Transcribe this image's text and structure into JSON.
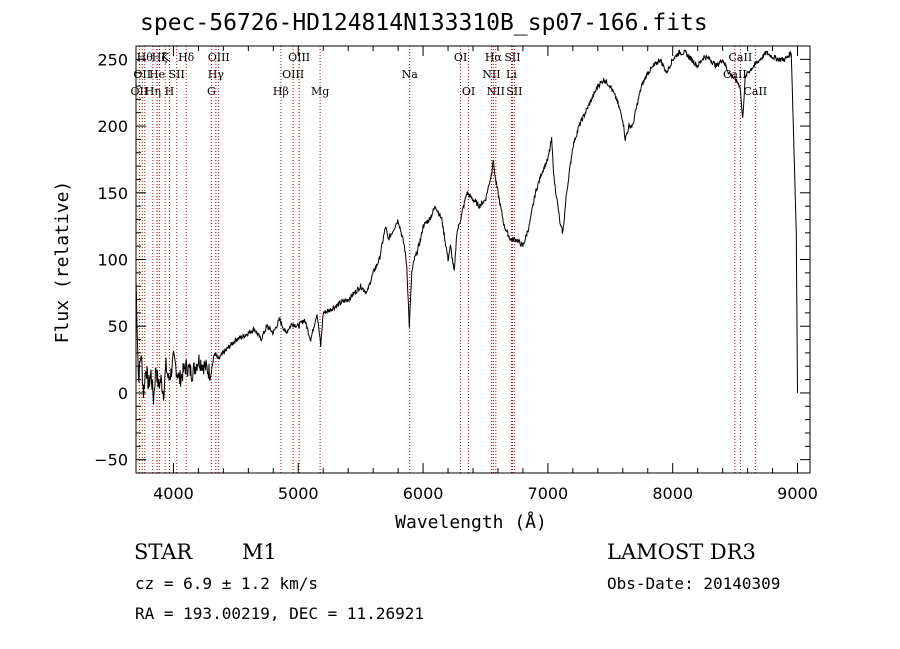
{
  "chart_data": {
    "type": "line",
    "title": "spec-56726-HD124814N133310B_sp07-166.fits",
    "xlabel": "Wavelength (Å)",
    "ylabel": "Flux (relative)",
    "xlim": [
      3700,
      9100
    ],
    "ylim": [
      -60,
      260
    ],
    "xticks": [
      4000,
      5000,
      6000,
      7000,
      8000,
      9000
    ],
    "yticks": [
      -50,
      0,
      50,
      100,
      150,
      200,
      250
    ],
    "grid": false,
    "series": [
      {
        "x": [
          3700,
          3720,
          3740,
          3760,
          3780,
          3800,
          3820,
          3840,
          3860,
          3880,
          3900,
          3920,
          3940,
          3960,
          3980,
          4000,
          4050,
          4100,
          4150,
          4200,
          4250,
          4300,
          4330,
          4360,
          4400,
          4450,
          4500,
          4550,
          4600,
          4650,
          4700,
          4750,
          4800,
          4850,
          4900,
          4950,
          5000,
          5050,
          5100,
          5150,
          5180,
          5200,
          5250,
          5300,
          5350,
          5400,
          5450,
          5500,
          5550,
          5600,
          5650,
          5700,
          5720,
          5750,
          5800,
          5850,
          5870,
          5890,
          5910,
          5930,
          5950,
          5980,
          6000,
          6050,
          6100,
          6150,
          6200,
          6220,
          6250,
          6270,
          6300,
          6350,
          6400,
          6450,
          6500,
          6550,
          6560,
          6580,
          6600,
          6650,
          6700,
          6750,
          6800,
          6850,
          6900,
          6950,
          7000,
          7030,
          7050,
          7080,
          7100,
          7120,
          7150,
          7200,
          7250,
          7300,
          7350,
          7400,
          7450,
          7500,
          7550,
          7600,
          7620,
          7650,
          7680,
          7700,
          7750,
          7800,
          7850,
          7900,
          7950,
          8000,
          8050,
          8100,
          8150,
          8200,
          8250,
          8300,
          8350,
          8400,
          8450,
          8500,
          8540,
          8560,
          8580,
          8600,
          8650,
          8700,
          8750,
          8800,
          8850,
          8900,
          8950,
          8990,
          9000
        ],
        "y": [
          85,
          10,
          30,
          0,
          20,
          5,
          15,
          -5,
          20,
          5,
          10,
          0,
          20,
          10,
          15,
          25,
          10,
          20,
          15,
          25,
          20,
          15,
          30,
          25,
          30,
          35,
          40,
          42,
          45,
          48,
          40,
          50,
          45,
          55,
          45,
          52,
          50,
          55,
          40,
          60,
          35,
          60,
          62,
          65,
          68,
          70,
          75,
          80,
          75,
          90,
          100,
          125,
          115,
          120,
          130,
          110,
          95,
          50,
          90,
          100,
          105,
          115,
          125,
          130,
          140,
          130,
          100,
          110,
          90,
          120,
          130,
          150,
          145,
          140,
          145,
          165,
          175,
          160,
          150,
          125,
          115,
          115,
          110,
          125,
          150,
          165,
          175,
          190,
          160,
          140,
          125,
          120,
          150,
          185,
          200,
          210,
          220,
          230,
          235,
          230,
          220,
          205,
          190,
          200,
          200,
          210,
          230,
          240,
          245,
          250,
          240,
          250,
          255,
          255,
          250,
          245,
          252,
          250,
          245,
          250,
          240,
          235,
          230,
          205,
          235,
          240,
          245,
          250,
          255,
          252,
          250,
          250,
          255,
          120,
          0
        ]
      }
    ],
    "line_markers": [
      {
        "x": 3727,
        "label": "OII",
        "row": 2
      },
      {
        "x": 3750,
        "label": "OII",
        "row": 1
      },
      {
        "x": 3770,
        "label": "Hθ",
        "row": 0
      },
      {
        "x": 3835,
        "label": "Hη",
        "row": 2
      },
      {
        "x": 3869,
        "label": "He",
        "row": 1
      },
      {
        "x": 3889,
        "label": "Hζ",
        "row": 0
      },
      {
        "x": 3934,
        "label": "K",
        "row": 0
      },
      {
        "x": 3968,
        "label": "H",
        "row": 2
      },
      {
        "x": 4026,
        "label": "SII",
        "row": 1
      },
      {
        "x": 4102,
        "label": "Hδ",
        "row": 0
      },
      {
        "x": 4304,
        "label": "G",
        "row": 2
      },
      {
        "x": 4340,
        "label": "Hγ",
        "row": 1
      },
      {
        "x": 4363,
        "label": "OIII",
        "row": 0
      },
      {
        "x": 4861,
        "label": "Hβ",
        "row": 2
      },
      {
        "x": 4959,
        "label": "OIII",
        "row": 1
      },
      {
        "x": 5007,
        "label": "OIII",
        "row": 0
      },
      {
        "x": 5175,
        "label": "Mg",
        "row": 2
      },
      {
        "x": 5893,
        "label": "Na",
        "row": 1
      },
      {
        "x": 6300,
        "label": "OI",
        "row": 0
      },
      {
        "x": 6364,
        "label": "OI",
        "row": 2
      },
      {
        "x": 6548,
        "label": "NII",
        "row": 1
      },
      {
        "x": 6563,
        "label": "Hα",
        "row": 0
      },
      {
        "x": 6583,
        "label": "NII",
        "row": 2
      },
      {
        "x": 6708,
        "label": "Li",
        "row": 1
      },
      {
        "x": 6716,
        "label": "SII",
        "row": 0
      },
      {
        "x": 6731,
        "label": "SII",
        "row": 2
      },
      {
        "x": 8498,
        "label": "CaII",
        "row": 1
      },
      {
        "x": 8542,
        "label": "CaII",
        "row": 0
      },
      {
        "x": 8662,
        "label": "CaII",
        "row": 2
      }
    ],
    "marker_color": "#c00000"
  },
  "info": {
    "class": "STAR",
    "subclass": "M1",
    "cz": "cz = 6.9 ± 1.2 km/s",
    "coords": "RA = 193.00219, DEC =  11.26921",
    "survey": "LAMOST DR3",
    "obs_date": "Obs-Date: 20140309"
  }
}
